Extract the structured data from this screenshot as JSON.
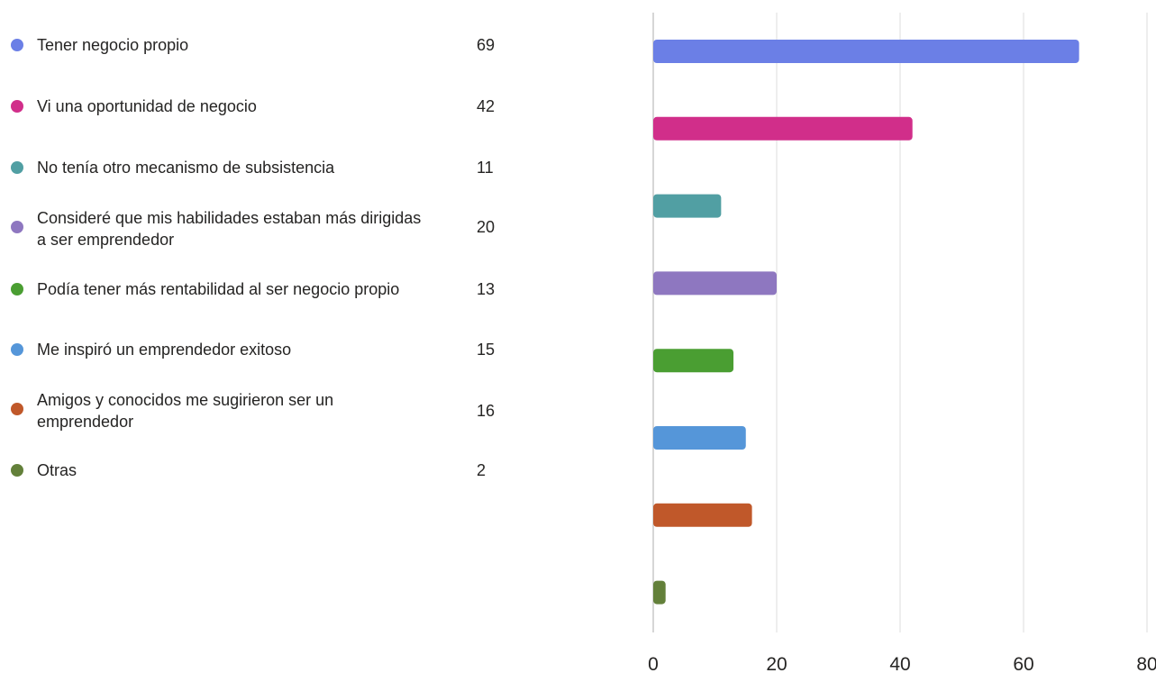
{
  "chart_data": {
    "type": "bar",
    "orientation": "horizontal",
    "categories": [
      "Tener negocio propio",
      "Vi una oportunidad de negocio",
      "No tenía otro mecanismo de subsistencia",
      "Consideré que mis habilidades estaban más dirigidas a ser emprendedor",
      "Podía tener más rentabilidad al ser negocio propio",
      "Me inspiró un emprendedor exitoso",
      "Amigos y conocidos me sugirieron ser un emprendedor",
      "Otras"
    ],
    "values": [
      69,
      42,
      11,
      20,
      13,
      15,
      16,
      2
    ],
    "colors": [
      "#6b7fe6",
      "#d12e8a",
      "#519fa3",
      "#8e77c0",
      "#4a9e32",
      "#5596d9",
      "#c0582a",
      "#63803a"
    ],
    "xlim": [
      0,
      80
    ],
    "xticks": [
      "0",
      "20",
      "40",
      "60",
      "80"
    ],
    "grid": true,
    "legend_position": "left"
  }
}
